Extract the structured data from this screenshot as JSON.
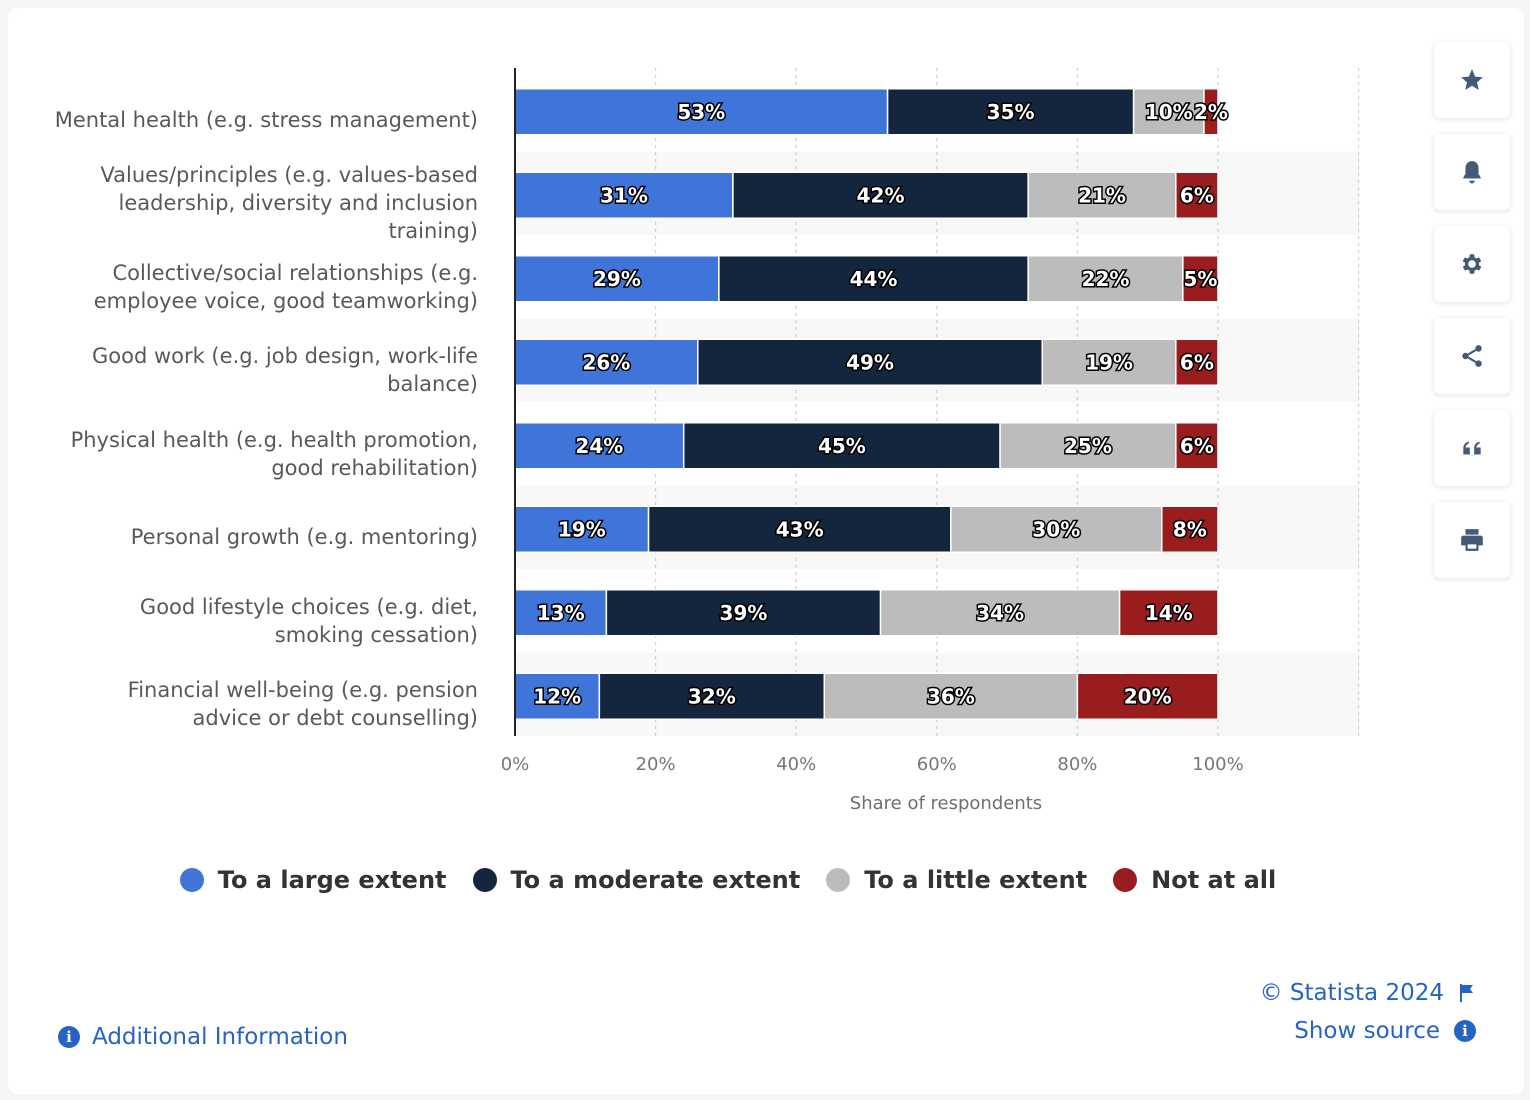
{
  "chart_data": {
    "type": "bar",
    "orientation": "horizontal",
    "stacked": true,
    "categories": [
      "Mental health (e.g. stress management)",
      "Values/principles (e.g. values-based leadership, diversity and inclusion training)",
      "Collective/social relationships (e.g. employee voice, good teamworking)",
      "Good work (e.g. job design, work-life balance)",
      "Physical health (e.g. health promotion, good rehabilitation)",
      "Personal growth (e.g. mentoring)",
      "Good lifestyle choices (e.g. diet, smoking cessation)",
      "Financial well-being (e.g. pension advice or debt counselling)"
    ],
    "category_lines": [
      [
        "Mental health (e.g. stress management)"
      ],
      [
        "Values/principles (e.g. values-based",
        "leadership, diversity and inclusion",
        "training)"
      ],
      [
        "Collective/social relationships (e.g.",
        "employee voice, good teamworking)"
      ],
      [
        "Good work (e.g. job design, work-life",
        "balance)"
      ],
      [
        "Physical health (e.g. health promotion,",
        "good rehabilitation)"
      ],
      [
        "Personal growth (e.g. mentoring)"
      ],
      [
        "Good lifestyle choices (e.g. diet,",
        "smoking cessation)"
      ],
      [
        "Financial well-being (e.g. pension",
        "advice or debt counselling)"
      ]
    ],
    "series": [
      {
        "name": "To a large extent",
        "color": "#3f75d8",
        "values": [
          53,
          31,
          29,
          26,
          24,
          19,
          13,
          12
        ]
      },
      {
        "name": "To a moderate extent",
        "color": "#14253e",
        "values": [
          35,
          42,
          44,
          49,
          45,
          43,
          39,
          32
        ]
      },
      {
        "name": "To a little extent",
        "color": "#bcbcbc",
        "values": [
          10,
          21,
          22,
          19,
          25,
          30,
          34,
          36
        ]
      },
      {
        "name": "Not at all",
        "color": "#981d1c",
        "values": [
          2,
          6,
          5,
          6,
          6,
          8,
          14,
          20
        ]
      }
    ],
    "xlabel": "Share of respondents",
    "xlim": [
      0,
      120
    ],
    "xticks": [
      "0%",
      "20%",
      "40%",
      "60%",
      "80%",
      "100%"
    ],
    "xtick_values": [
      0,
      20,
      40,
      60,
      80,
      100
    ],
    "grid": true,
    "legend_position": "bottom"
  },
  "footer": {
    "copyright": "© Statista 2024",
    "show_source": "Show source",
    "additional_info": "Additional Information"
  },
  "sidebar": {
    "buttons": [
      "star-icon",
      "bell-icon",
      "gear-icon",
      "share-icon",
      "quote-icon",
      "print-icon"
    ]
  }
}
